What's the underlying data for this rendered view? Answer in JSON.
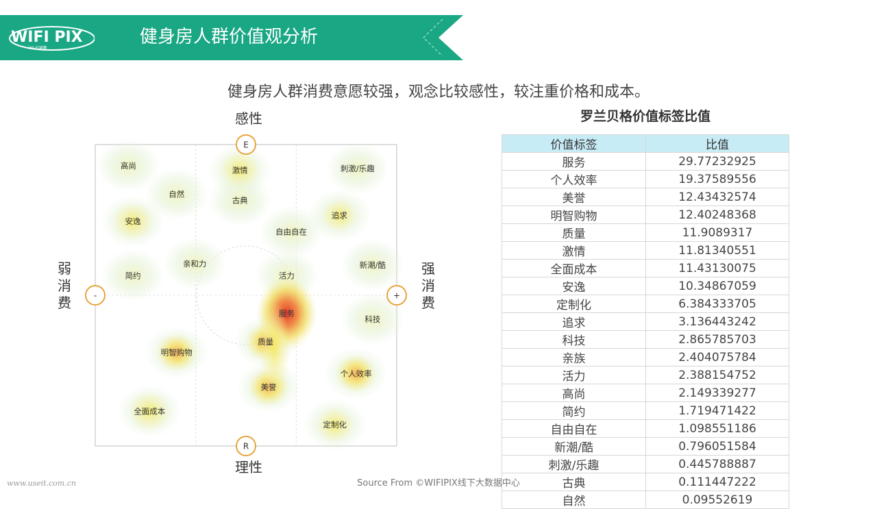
{
  "header": {
    "logo_text": "WIFI PIX",
    "logo_subtext": "Wi-Fi洞察",
    "title": "健身房人群价值观分析"
  },
  "subtitle": "健身房人群消费意愿较强，观念比较感性，较注重价格和成本。",
  "colors": {
    "banner": "#1aa784",
    "banner_accent": "#8ad9c3",
    "table_header": "#c7ecf6",
    "marker": "#e8a33c",
    "heat_low": "#f6f2a0",
    "heat_high": "#e53a2d"
  },
  "chart_data": [
    {
      "type": "heatmap",
      "title": "",
      "axes": {
        "top_label": "感性",
        "bottom_label": "理性",
        "left_label": "弱消费",
        "right_label": "强消费",
        "top_marker": "E",
        "bottom_marker": "R",
        "left_marker": "-",
        "right_marker": "+"
      },
      "grid": "3 columns, dashed dividers",
      "points": [
        {
          "label": "高尚",
          "x": 0.11,
          "y": 0.07,
          "heat": 0.0
        },
        {
          "label": "激情",
          "x": 0.48,
          "y": 0.085,
          "heat": 0.45
        },
        {
          "label": "刺激/乐趣",
          "x": 0.87,
          "y": 0.08,
          "heat": 0.1
        },
        {
          "label": "自然",
          "x": 0.27,
          "y": 0.165,
          "heat": 0.0
        },
        {
          "label": "古典",
          "x": 0.48,
          "y": 0.185,
          "heat": 0.0
        },
        {
          "label": "安逸",
          "x": 0.125,
          "y": 0.255,
          "heat": 0.45
        },
        {
          "label": "追求",
          "x": 0.81,
          "y": 0.235,
          "heat": 0.2
        },
        {
          "label": "自由自在",
          "x": 0.65,
          "y": 0.29,
          "heat": 0.08
        },
        {
          "label": "亲和力",
          "x": 0.33,
          "y": 0.395,
          "heat": 0.12
        },
        {
          "label": "新潮/酷",
          "x": 0.92,
          "y": 0.4,
          "heat": 0.1
        },
        {
          "label": "简约",
          "x": 0.125,
          "y": 0.435,
          "heat": 0.1
        },
        {
          "label": "活力",
          "x": 0.635,
          "y": 0.435,
          "heat": 0.15
        },
        {
          "label": "服务",
          "x": 0.635,
          "y": 0.56,
          "heat": 1.0
        },
        {
          "label": "科技",
          "x": 0.92,
          "y": 0.58,
          "heat": 0.15
        },
        {
          "label": "质量",
          "x": 0.565,
          "y": 0.655,
          "heat": 0.55
        },
        {
          "label": "明智购物",
          "x": 0.27,
          "y": 0.69,
          "heat": 0.6
        },
        {
          "label": "个人效率",
          "x": 0.865,
          "y": 0.76,
          "heat": 0.75
        },
        {
          "label": "美誉",
          "x": 0.575,
          "y": 0.805,
          "heat": 0.62
        },
        {
          "label": "全面成本",
          "x": 0.18,
          "y": 0.885,
          "heat": 0.5
        },
        {
          "label": "定制化",
          "x": 0.795,
          "y": 0.93,
          "heat": 0.3
        }
      ]
    },
    {
      "type": "table",
      "title": "罗兰贝格价值标签比值",
      "columns": [
        "价值标签",
        "比值"
      ],
      "rows": [
        [
          "服务",
          "29.77232925"
        ],
        [
          "个人效率",
          "19.37589556"
        ],
        [
          "美誉",
          "12.43432574"
        ],
        [
          "明智购物",
          "12.40248368"
        ],
        [
          "质量",
          "11.9089317"
        ],
        [
          "激情",
          "11.81340551"
        ],
        [
          "全面成本",
          "11.43130075"
        ],
        [
          "安逸",
          "10.34867059"
        ],
        [
          "定制化",
          "6.384333705"
        ],
        [
          "追求",
          "3.136443242"
        ],
        [
          "科技",
          "2.865785703"
        ],
        [
          "亲族",
          "2.404075784"
        ],
        [
          "活力",
          "2.388154752"
        ],
        [
          "高尚",
          "2.149339277"
        ],
        [
          "简约",
          "1.719471422"
        ],
        [
          "自由自在",
          "1.098551186"
        ],
        [
          "新潮/酷",
          "0.796051584"
        ],
        [
          "刺激/乐趣",
          "0.445788887"
        ],
        [
          "古典",
          "0.111447222"
        ],
        [
          "自然",
          "0.09552619"
        ]
      ]
    }
  ],
  "footer": {
    "source": "Source From ©WIFIPIX线下大数据中心",
    "watermark": "www.useit.com.cn"
  }
}
